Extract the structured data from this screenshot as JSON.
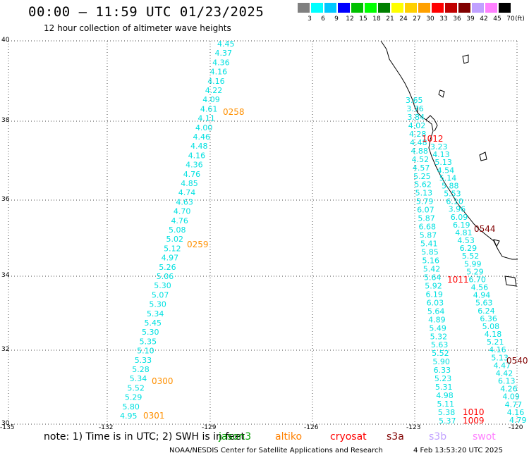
{
  "header": {
    "title": "00:00 – 11:59 UTC 01/23/2025",
    "subtitle": "12 hour collection of altimeter wave heights"
  },
  "color_scale": {
    "colors": [
      "#808080",
      "#00ffff",
      "#00c8ff",
      "#0000ff",
      "#00c000",
      "#00ff00",
      "#008000",
      "#ffff00",
      "#ffd000",
      "#ffa000",
      "#ff0000",
      "#c00000",
      "#800000",
      "#c0a0ff",
      "#ff80ff",
      "#000000"
    ],
    "labels": [
      "3",
      "6",
      "9",
      "12",
      "15",
      "18",
      "21",
      "24",
      "27",
      "30",
      "33",
      "36",
      "39",
      "42",
      "45",
      "70"
    ],
    "unit": "(ft)"
  },
  "axes": {
    "lat_labels": [
      "40",
      "38",
      "36",
      "34",
      "32",
      "30"
    ],
    "lon_labels": [
      "-135",
      "-132",
      "-129",
      "-126",
      "-123",
      "-120"
    ]
  },
  "track_west": {
    "values": [
      "4.45",
      "4.37",
      "4.36",
      "4.16",
      "4.16",
      "4.22",
      "4.09",
      "4.61",
      "4.11",
      "4.00",
      "4.46",
      "4.48",
      "4.16",
      "4.36",
      "4.76",
      "4.85",
      "4.74",
      "4.63",
      "4.70",
      "4.76",
      "5.08",
      "5.02",
      "5.12",
      "4.97",
      "5.26",
      "5.06",
      "5.30",
      "5.07",
      "5.30",
      "5.34",
      "5.45",
      "5.30",
      "5.35",
      "5.10",
      "5.33",
      "5.28",
      "5.34",
      "5.52",
      "5.29",
      "5.80",
      "4.95"
    ],
    "times": [
      "0258",
      "0259",
      "0300",
      "0301"
    ]
  },
  "track_coast": {
    "values": [
      "3.65",
      "3.76",
      "3.84",
      "4.02",
      "4.28",
      "4.48",
      "4.88",
      "4.52",
      "4.57",
      "5.25",
      "5.62",
      "5.13",
      "5.79",
      "6.07",
      "5.87",
      "6.68",
      "5.87",
      "5.41",
      "5.85",
      "5.16",
      "5.42",
      "5.64",
      "5.92",
      "6.19",
      "6.03",
      "5.64",
      "4.89",
      "5.49",
      "5.32",
      "5.63",
      "5.52",
      "5.90",
      "6.33",
      "5.23",
      "5.31",
      "4.98",
      "5.11",
      "5.38",
      "5.37"
    ],
    "times": [
      "1012",
      "1011",
      "1010",
      "1009"
    ]
  },
  "track_east": {
    "values": [
      "3.23",
      "4.13",
      "5.13",
      "4.54",
      "5.14",
      "5.88",
      "5.53",
      "6.10",
      "3.96",
      "6.09",
      "6.19",
      "4.81",
      "4.53",
      "6.29",
      "5.52",
      "5.99",
      "5.29",
      "6.70",
      "4.56",
      "4.94",
      "5.63",
      "6.24",
      "6.36",
      "5.08",
      "4.18",
      "5.21",
      "4.16",
      "5.13",
      "4.47",
      "4.42",
      "6.13",
      "4.26",
      "4.09",
      "4.77",
      "4.16",
      "4.79"
    ],
    "times": [
      "0544",
      "0540"
    ]
  },
  "footer": {
    "note": "note: 1) Time is in UTC; 2) SWH is in feet",
    "missions": [
      {
        "name": "jason3",
        "color": "#00a000"
      },
      {
        "name": "altiko",
        "color": "#ff8000"
      },
      {
        "name": "cryosat",
        "color": "#ff0000"
      },
      {
        "name": "s3a",
        "color": "#800000"
      },
      {
        "name": "s3b",
        "color": "#c0a0ff"
      },
      {
        "name": "swot",
        "color": "#ff80ff"
      }
    ],
    "credit": "NOAA/NESDIS Center for Satellite Applications and Research",
    "datestamp": "4 Feb 13:53:20 UTC 2025"
  }
}
